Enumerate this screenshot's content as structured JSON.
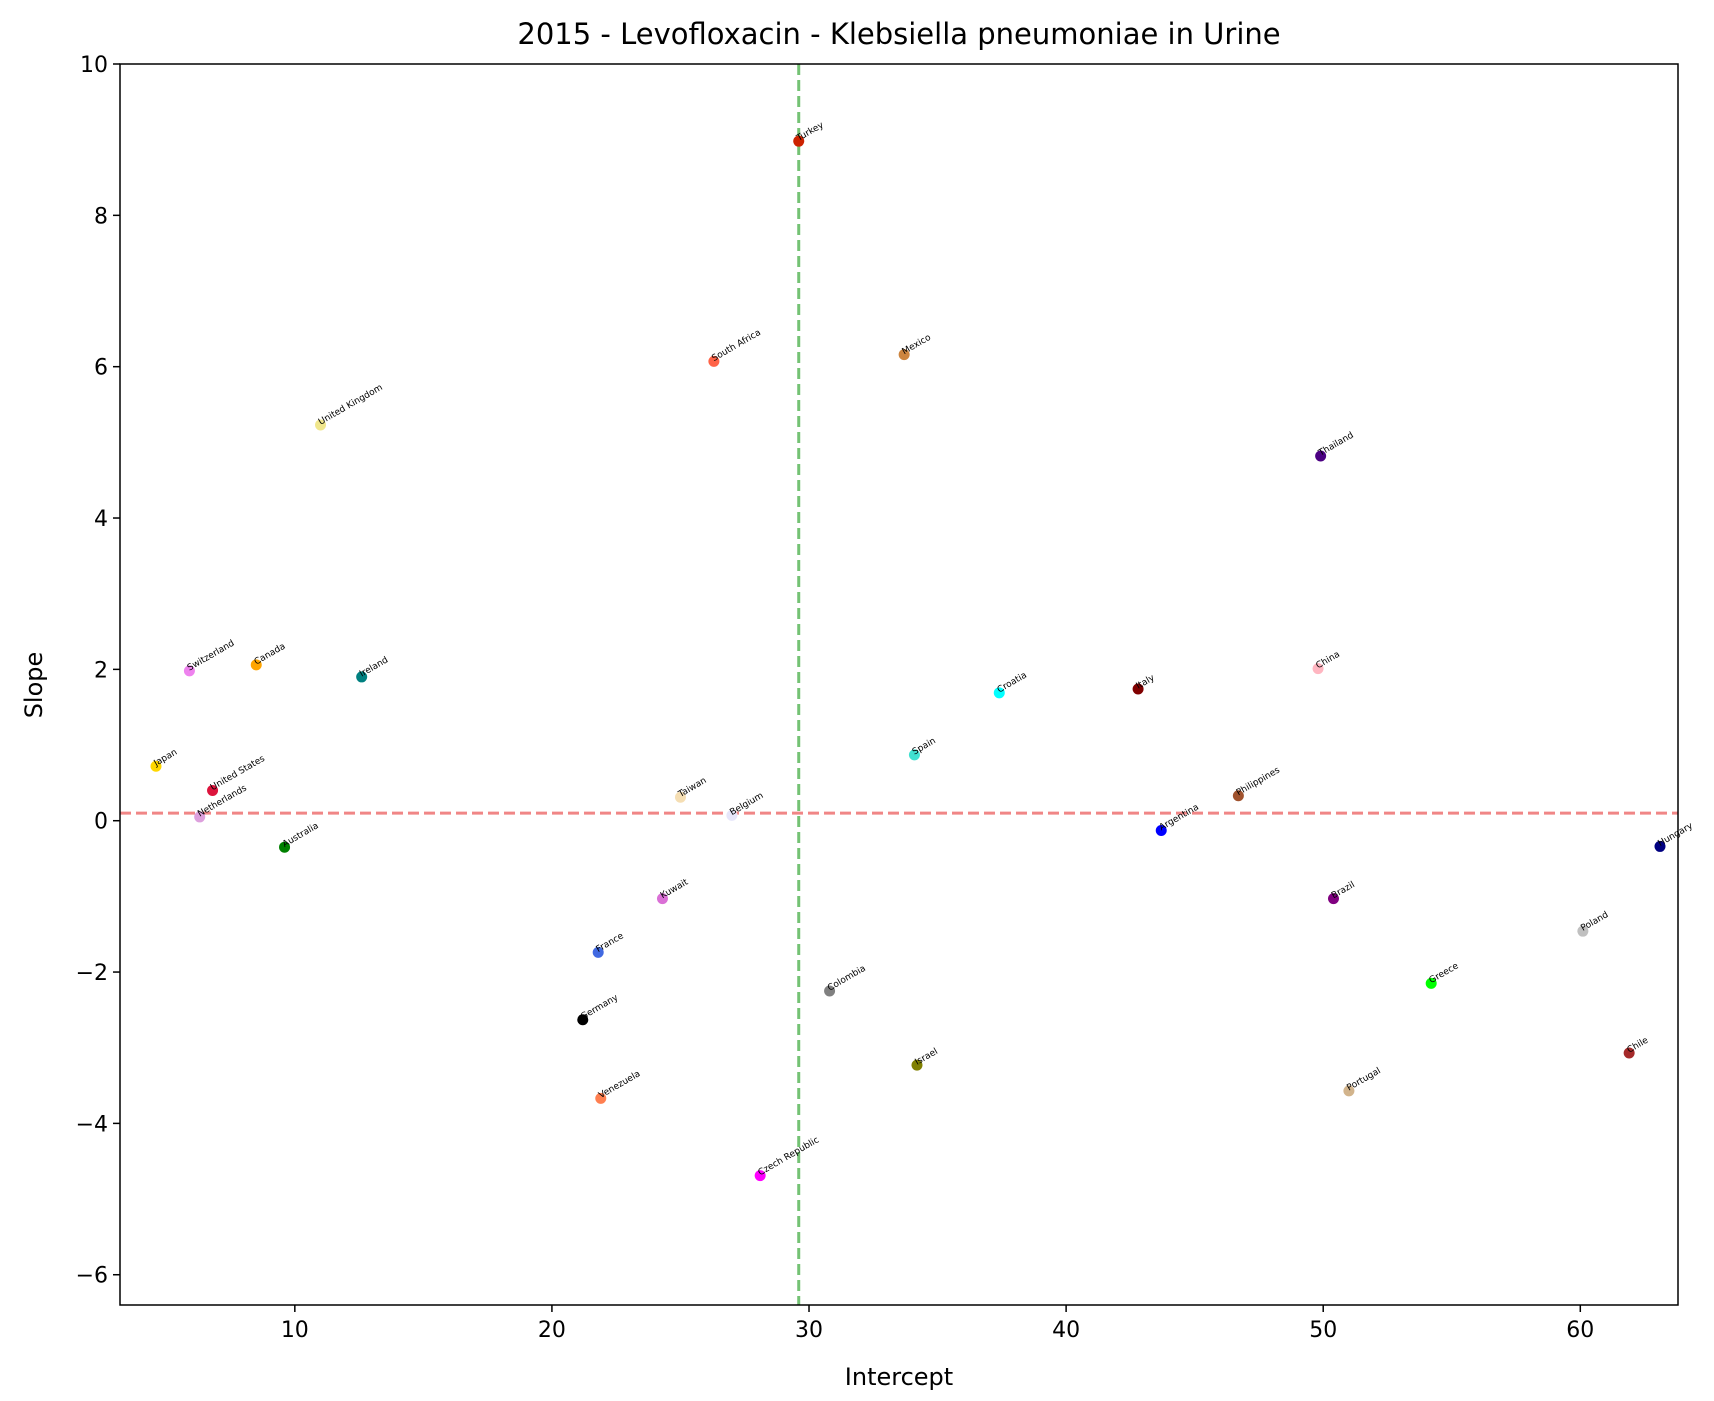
{
  "chart_data": {
    "type": "scatter",
    "title": "2015 - Levofloxacin - Klebsiella pneumoniae in Urine",
    "xlabel": "Intercept",
    "ylabel": "Slope",
    "xlim": [
      3.2,
      63.8
    ],
    "ylim": [
      -6.4,
      10.0
    ],
    "xticks": [
      10,
      20,
      30,
      40,
      50,
      60
    ],
    "yticks": [
      -6,
      -4,
      -2,
      0,
      2,
      4,
      6,
      8,
      10
    ],
    "ytick_labels": [
      "−6",
      "−4",
      "−2",
      "0",
      "2",
      "4",
      "6",
      "8",
      "10"
    ],
    "grid": false,
    "reference_lines": {
      "vertical": {
        "x": 29.6,
        "color": "#5cb85c",
        "style": "dashed"
      },
      "horizontal": {
        "y": 0.1,
        "color": "#f08080",
        "style": "dashed"
      }
    },
    "points": [
      {
        "label": "Turkey",
        "x": 29.6,
        "y": 8.98,
        "color": "#cc2200"
      },
      {
        "label": "South Africa",
        "x": 26.3,
        "y": 6.07,
        "color": "#ff6347"
      },
      {
        "label": "Mexico",
        "x": 33.7,
        "y": 6.16,
        "color": "#cd853f"
      },
      {
        "label": "United Kingdom",
        "x": 11.0,
        "y": 5.23,
        "color": "#f0e68c"
      },
      {
        "label": "Thailand",
        "x": 49.9,
        "y": 4.82,
        "color": "#4b0082"
      },
      {
        "label": "Switzerland",
        "x": 5.9,
        "y": 1.98,
        "color": "#ee82ee"
      },
      {
        "label": "Canada",
        "x": 8.5,
        "y": 2.06,
        "color": "#ffa500"
      },
      {
        "label": "Ireland",
        "x": 12.6,
        "y": 1.9,
        "color": "#008080"
      },
      {
        "label": "China",
        "x": 49.8,
        "y": 2.01,
        "color": "#ffb6c1"
      },
      {
        "label": "Croatia",
        "x": 37.4,
        "y": 1.69,
        "color": "#00ffff"
      },
      {
        "label": "Italy",
        "x": 42.8,
        "y": 1.74,
        "color": "#800000"
      },
      {
        "label": "Spain",
        "x": 34.1,
        "y": 0.87,
        "color": "#40e0d0"
      },
      {
        "label": "Japan",
        "x": 4.6,
        "y": 0.72,
        "color": "#ffd700"
      },
      {
        "label": "United States",
        "x": 6.8,
        "y": 0.4,
        "color": "#dc143c"
      },
      {
        "label": "Netherlands",
        "x": 6.3,
        "y": 0.05,
        "color": "#dda0dd"
      },
      {
        "label": "Taiwan",
        "x": 25.0,
        "y": 0.31,
        "color": "#f5deb3"
      },
      {
        "label": "Belgium",
        "x": 27.0,
        "y": 0.07,
        "color": "#e6e6fa"
      },
      {
        "label": "Philippines",
        "x": 46.7,
        "y": 0.33,
        "color": "#a0522d"
      },
      {
        "label": "Argentina",
        "x": 43.7,
        "y": -0.13,
        "color": "#0000ff"
      },
      {
        "label": "Hungary",
        "x": 63.1,
        "y": -0.34,
        "color": "#000080"
      },
      {
        "label": "Australia",
        "x": 9.6,
        "y": -0.35,
        "color": "#008000"
      },
      {
        "label": "Kuwait",
        "x": 24.3,
        "y": -1.03,
        "color": "#da70d6"
      },
      {
        "label": "Brazil",
        "x": 50.4,
        "y": -1.03,
        "color": "#800080"
      },
      {
        "label": "France",
        "x": 21.8,
        "y": -1.74,
        "color": "#4169e1"
      },
      {
        "label": "Poland",
        "x": 60.1,
        "y": -1.46,
        "color": "#c0c0c0"
      },
      {
        "label": "Greece",
        "x": 54.2,
        "y": -2.15,
        "color": "#00ff00"
      },
      {
        "label": "Colombia",
        "x": 30.8,
        "y": -2.25,
        "color": "#808080"
      },
      {
        "label": "Germany",
        "x": 21.2,
        "y": -2.63,
        "color": "#000000"
      },
      {
        "label": "Israel",
        "x": 34.2,
        "y": -3.23,
        "color": "#808000"
      },
      {
        "label": "Chile",
        "x": 61.9,
        "y": -3.07,
        "color": "#a52a2a"
      },
      {
        "label": "Portugal",
        "x": 51.0,
        "y": -3.57,
        "color": "#d2b48c"
      },
      {
        "label": "Venezuela",
        "x": 21.9,
        "y": -3.67,
        "color": "#ff7f50"
      },
      {
        "label": "Czech Republic",
        "x": 28.1,
        "y": -4.69,
        "color": "#ff00ff"
      }
    ]
  }
}
